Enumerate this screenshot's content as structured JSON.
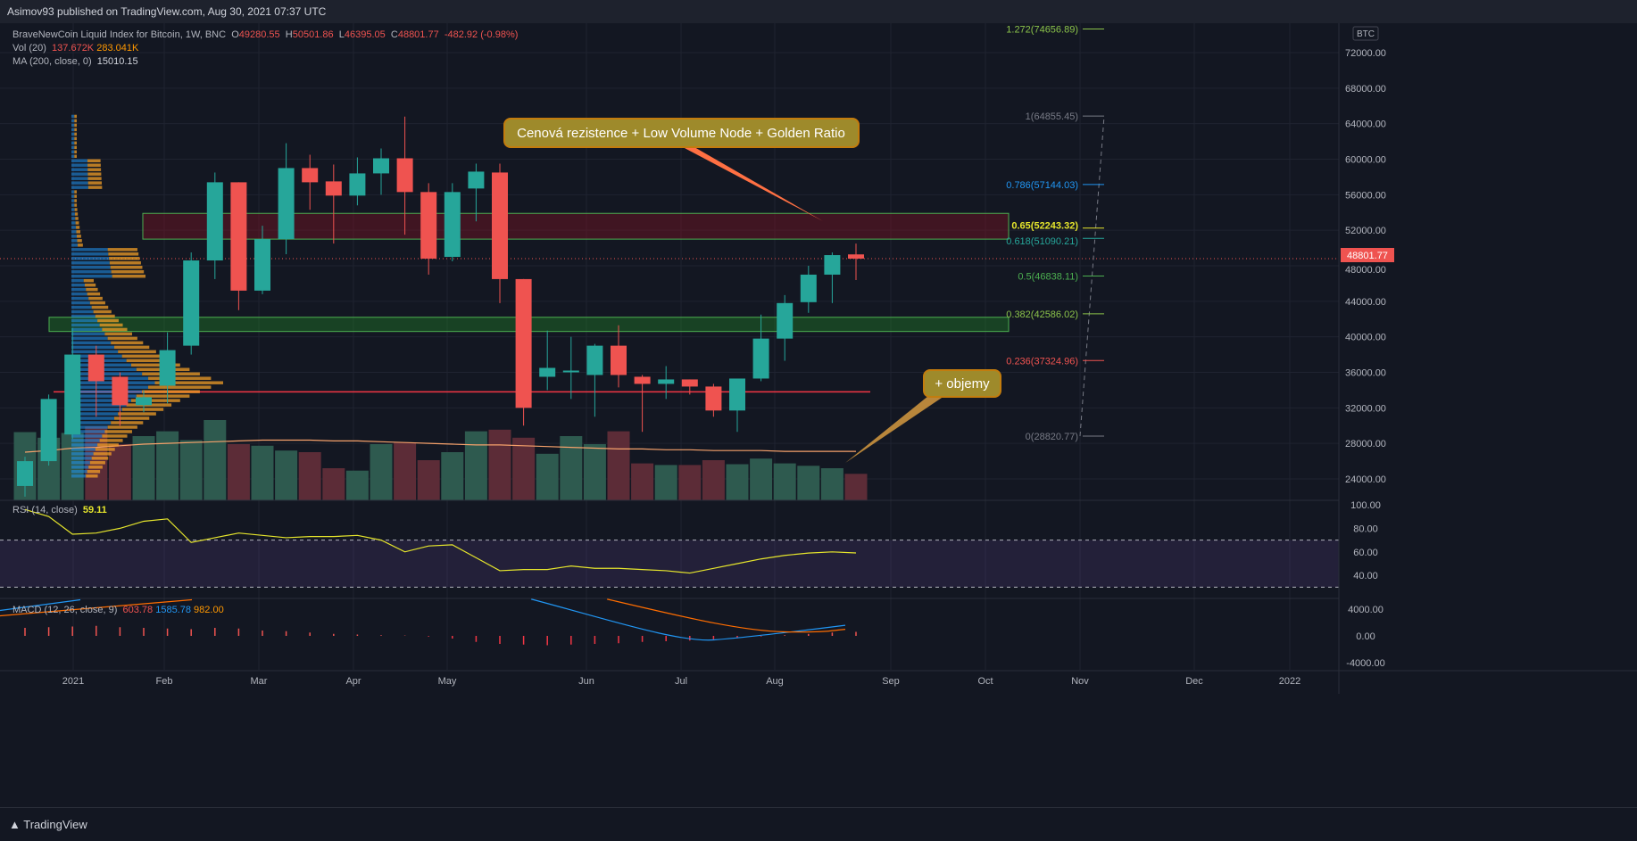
{
  "header": {
    "published": "Asimov93 published on TradingView.com, Aug 30, 2021 07:37 UTC"
  },
  "legend": {
    "symbol": "BraveNewCoin Liquid Index for Bitcoin, 1W, BNC",
    "o_label": "O",
    "o": "49280.55",
    "h_label": "H",
    "h": "50501.86",
    "l_label": "L",
    "l": "46395.05",
    "c_label": "C",
    "c": "48801.77",
    "change": "-482.92 (-0.98%)",
    "vol_label": "Vol (20)",
    "vol1": "137.672K",
    "vol2": "283.041K",
    "ma_label": "MA (200, close, 0)",
    "ma": "15010.15"
  },
  "rsi": {
    "label": "RSI (14, close)",
    "value": "59.11"
  },
  "macd": {
    "label": "MACD (12, 26, close, 9)",
    "hist": "603.78",
    "macd": "1585.78",
    "signal": "982.00"
  },
  "footer": {
    "brand": "TradingView"
  },
  "currency": "BTC",
  "last_price_label": "48801.77",
  "annotations": {
    "resistance": "Cenová rezistence + Low Volume Node + Golden Ratio",
    "volumes": "+ objemy"
  },
  "colors": {
    "up": "#26a69a",
    "down": "#ef5350",
    "bg": "#131722"
  },
  "chart_data": {
    "type": "candlestick",
    "title": "BraveNewCoin Liquid Index for Bitcoin, 1W",
    "ylim": [
      20000,
      76000
    ],
    "y_ticks": [
      72000,
      68000,
      64000,
      60000,
      56000,
      52000,
      48000,
      44000,
      40000,
      36000,
      32000,
      28000,
      24000
    ],
    "y_tick_labels": [
      "72000.00",
      "68000.00",
      "64000.00",
      "60000.00",
      "56000.00",
      "52000.00",
      "48000.00",
      "44000.00",
      "40000.00",
      "36000.00",
      "32000.00",
      "28000.00",
      "24000.00"
    ],
    "x_tick_labels": [
      "2021",
      "Feb",
      "Mar",
      "Apr",
      "May",
      "Jun",
      "Jul",
      "Aug",
      "Sep",
      "Oct",
      "Nov",
      "Dec",
      "2022"
    ],
    "candles": [
      [
        23200,
        26500,
        22000,
        26000
      ],
      [
        26000,
        33500,
        25500,
        33000
      ],
      [
        29000,
        41000,
        28500,
        38000
      ],
      [
        38000,
        39000,
        31000,
        35000
      ],
      [
        35500,
        36000,
        30000,
        32300
      ],
      [
        32300,
        34000,
        31500,
        33200
      ],
      [
        34500,
        40500,
        32500,
        38500
      ],
      [
        39000,
        49500,
        38000,
        48600
      ],
      [
        48600,
        58500,
        46500,
        57400
      ],
      [
        57400,
        57400,
        43000,
        45200
      ],
      [
        45200,
        52500,
        44800,
        51000
      ],
      [
        51000,
        61800,
        49300,
        59000
      ],
      [
        59000,
        60500,
        54300,
        57400
      ],
      [
        57500,
        59400,
        50500,
        55900
      ],
      [
        55900,
        60200,
        54800,
        58400
      ],
      [
        58400,
        61200,
        56000,
        60100
      ],
      [
        60100,
        64800,
        51500,
        56300
      ],
      [
        56300,
        57300,
        47000,
        48800
      ],
      [
        49000,
        57300,
        48500,
        56300
      ],
      [
        56700,
        59500,
        53000,
        58600
      ],
      [
        58500,
        59500,
        43800,
        46500
      ],
      [
        46500,
        46500,
        30000,
        32000
      ],
      [
        35500,
        40700,
        34000,
        36500
      ],
      [
        36000,
        40000,
        33000,
        36200
      ],
      [
        35700,
        39200,
        31000,
        39000
      ],
      [
        39000,
        41300,
        34300,
        35700
      ],
      [
        35500,
        35700,
        29300,
        34700
      ],
      [
        34700,
        36700,
        33000,
        35200
      ],
      [
        35200,
        35200,
        33500,
        34400
      ],
      [
        34400,
        34700,
        31000,
        31700
      ],
      [
        31700,
        35300,
        29300,
        35300
      ],
      [
        35300,
        42500,
        35000,
        39800
      ],
      [
        39800,
        44700,
        37300,
        43800
      ],
      [
        43900,
        48000,
        42700,
        47000
      ],
      [
        47000,
        49500,
        43800,
        49200
      ],
      [
        49280,
        50501,
        46395,
        48801
      ]
    ],
    "volume": [
      85,
      78,
      84,
      92,
      70,
      80,
      86,
      75,
      100,
      70,
      68,
      62,
      60,
      40,
      37,
      70,
      72,
      50,
      60,
      86,
      88,
      78,
      58,
      80,
      70,
      86,
      46,
      44,
      44,
      50,
      45,
      52,
      46,
      43,
      40,
      33
    ],
    "volume_ma": [
      60,
      62,
      65,
      66,
      68,
      70,
      71,
      72,
      73,
      74,
      75,
      75,
      75,
      74,
      74,
      73,
      72,
      71,
      70,
      69,
      69,
      68,
      67,
      66,
      65,
      64,
      64,
      63,
      63,
      62,
      62,
      62,
      61,
      61,
      61,
      61
    ],
    "rsi": [
      96,
      90,
      75,
      76,
      80,
      86,
      88,
      68,
      72,
      76,
      74,
      72,
      73,
      73,
      74,
      70,
      60,
      65,
      66,
      55,
      44,
      45,
      45,
      48,
      46,
      46,
      45,
      44,
      42,
      46,
      50,
      54,
      57,
      59,
      60,
      59.11
    ],
    "macd_hist": [
      1200,
      1300,
      1400,
      1500,
      1300,
      1200,
      1100,
      1000,
      1200,
      1100,
      800,
      700,
      500,
      300,
      200,
      100,
      50,
      -100,
      -400,
      -900,
      -1200,
      -1300,
      -1400,
      -1300,
      -1200,
      -1100,
      -900,
      -800,
      -700,
      -500,
      -300,
      -100,
      100,
      300,
      500,
      603.78
    ],
    "fib_levels": [
      {
        "ratio": "1.272",
        "price": "74656.89",
        "color": "#8bc34a"
      },
      {
        "ratio": "1",
        "price": "64855.45",
        "color": "#787b86"
      },
      {
        "ratio": "0.786",
        "price": "57144.03",
        "color": "#2196f3"
      },
      {
        "ratio": "0.65",
        "price": "52243.32",
        "color": "#e6e62c"
      },
      {
        "ratio": "0.618",
        "price": "51090.21",
        "color": "#26a69a"
      },
      {
        "ratio": "0.5",
        "price": "46838.11",
        "color": "#4caf50"
      },
      {
        "ratio": "0.382",
        "price": "42586.02",
        "color": "#8bc34a"
      },
      {
        "ratio": "0.236",
        "price": "37324.96",
        "color": "#ef5350"
      },
      {
        "ratio": "0",
        "price": "28820.77",
        "color": "#787b86"
      }
    ],
    "rsi_ticks": [
      "100.00",
      "80.00",
      "60.00",
      "40.00"
    ],
    "macd_ticks": [
      "4000.00",
      "0.00",
      "-4000.00"
    ],
    "support_line": 33800,
    "resistance_zone": [
      51000,
      53900
    ],
    "support_zone": [
      40600,
      42200
    ]
  }
}
